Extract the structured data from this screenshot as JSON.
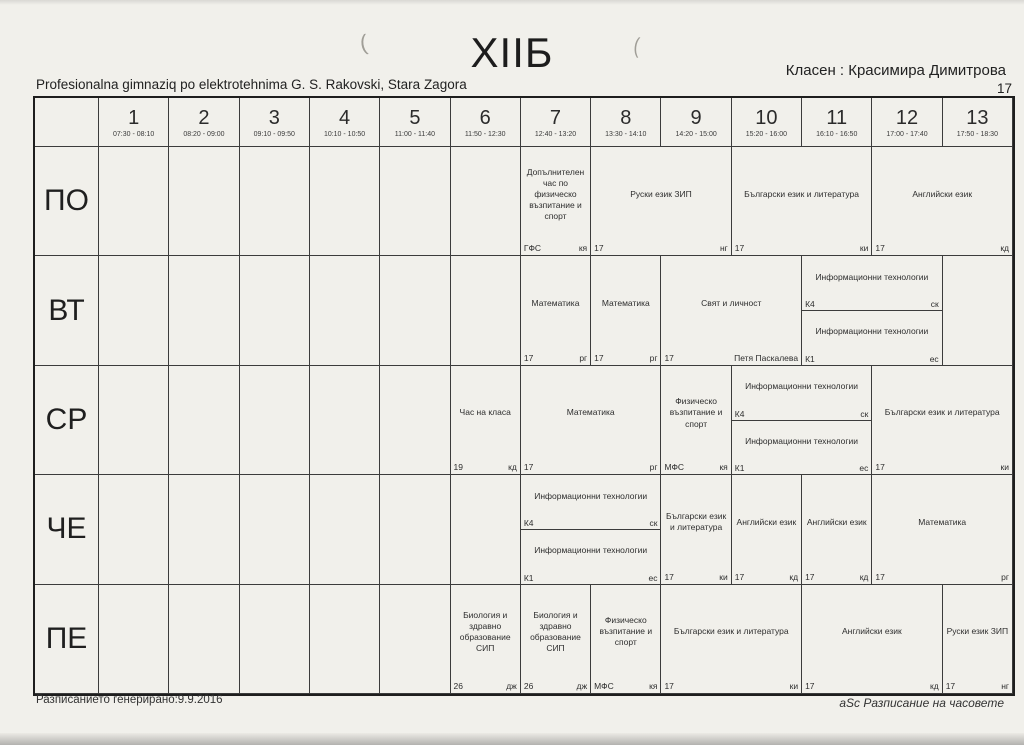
{
  "header": {
    "title": "ХIIБ",
    "class_teacher": "Класен : Красимира Димитрова",
    "school": "Profesionalna gimnaziq po elektrotehnima G. S. Rakovski, Stara Zagora",
    "page_number": "17"
  },
  "artifacts": [
    "(",
    "("
  ],
  "periods": [
    {
      "num": "1",
      "time": "07:30 - 08:10"
    },
    {
      "num": "2",
      "time": "08:20 - 09:00"
    },
    {
      "num": "3",
      "time": "09:10 - 09:50"
    },
    {
      "num": "4",
      "time": "10:10 - 10:50"
    },
    {
      "num": "5",
      "time": "11:00 - 11:40"
    },
    {
      "num": "6",
      "time": "11:50 - 12:30"
    },
    {
      "num": "7",
      "time": "12:40 - 13:20"
    },
    {
      "num": "8",
      "time": "13:30 - 14:10"
    },
    {
      "num": "9",
      "time": "14:20 - 15:00"
    },
    {
      "num": "10",
      "time": "15:20 - 16:00"
    },
    {
      "num": "11",
      "time": "16:10 - 16:50"
    },
    {
      "num": "12",
      "time": "17:00 - 17:40"
    },
    {
      "num": "13",
      "time": "17:50 - 18:30"
    }
  ],
  "days": [
    {
      "label": "ПО",
      "lessons": [
        {
          "col": 7,
          "span": 1,
          "subject": "Допълнителен час по  физическо възпитание и спорт",
          "room": "ГФС",
          "teacher": "кя"
        },
        {
          "col": 8,
          "span": 2,
          "subject": "Руски език ЗИП",
          "room": "17",
          "teacher": "нг"
        },
        {
          "col": 10,
          "span": 2,
          "subject": "Български език и литература",
          "room": "17",
          "teacher": "ки"
        },
        {
          "col": 12,
          "span": 2,
          "subject": "Английски език",
          "room": "17",
          "teacher": "кд"
        }
      ]
    },
    {
      "label": "ВТ",
      "lessons": [
        {
          "col": 7,
          "span": 1,
          "subject": "Математика",
          "room": "17",
          "teacher": "рг"
        },
        {
          "col": 8,
          "span": 1,
          "subject": "Математика",
          "room": "17",
          "teacher": "рг"
        },
        {
          "col": 9,
          "span": 2,
          "subject": "Свят и личност",
          "room": "17",
          "teacher": "Петя Паскалева"
        },
        {
          "col": 11,
          "span": 2,
          "groups": [
            {
              "subject": "Информационни технологии",
              "room": "К4",
              "teacher": "ск"
            },
            {
              "subject": "Информационни технологии",
              "room": "К1",
              "teacher": "ес"
            }
          ]
        }
      ]
    },
    {
      "label": "СР",
      "lessons": [
        {
          "col": 6,
          "span": 1,
          "subject": "Час на класа",
          "room": "19",
          "teacher": "кд"
        },
        {
          "col": 7,
          "span": 2,
          "subject": "Математика",
          "room": "17",
          "teacher": "рг"
        },
        {
          "col": 9,
          "span": 1,
          "subject": "Физическо възпитание и спорт",
          "room": "МФС",
          "teacher": "кя"
        },
        {
          "col": 10,
          "span": 2,
          "groups": [
            {
              "subject": "Информационни технологии",
              "room": "К4",
              "teacher": "ск"
            },
            {
              "subject": "Информационни технологии",
              "room": "К1",
              "teacher": "ес"
            }
          ]
        },
        {
          "col": 12,
          "span": 2,
          "subject": "Български език и литература",
          "room": "17",
          "teacher": "ки"
        }
      ]
    },
    {
      "label": "ЧЕ",
      "lessons": [
        {
          "col": 7,
          "span": 2,
          "groups": [
            {
              "subject": "Информационни технологии",
              "room": "К4",
              "teacher": "ск"
            },
            {
              "subject": "Информационни технологии",
              "room": "К1",
              "teacher": "ес"
            }
          ]
        },
        {
          "col": 9,
          "span": 1,
          "subject": "Български език и литература",
          "room": "17",
          "teacher": "ки"
        },
        {
          "col": 10,
          "span": 1,
          "subject": "Английски език",
          "room": "17",
          "teacher": "кд"
        },
        {
          "col": 11,
          "span": 1,
          "subject": "Английски език",
          "room": "17",
          "teacher": "кд"
        },
        {
          "col": 12,
          "span": 2,
          "subject": "Математика",
          "room": "17",
          "teacher": "рг"
        }
      ]
    },
    {
      "label": "ПЕ",
      "lessons": [
        {
          "col": 6,
          "span": 1,
          "subject": "Биология и здравно образование СИП",
          "room": "26",
          "teacher": "дж"
        },
        {
          "col": 7,
          "span": 1,
          "subject": "Биология и здравно образование СИП",
          "room": "26",
          "teacher": "дж"
        },
        {
          "col": 8,
          "span": 1,
          "subject": "Физическо възпитание и спорт",
          "room": "МФС",
          "teacher": "кя"
        },
        {
          "col": 9,
          "span": 2,
          "subject": "Български език и литература",
          "room": "17",
          "teacher": "ки"
        },
        {
          "col": 11,
          "span": 2,
          "subject": "Английски език",
          "room": "17",
          "teacher": "кд"
        },
        {
          "col": 13,
          "span": 1,
          "subject": "Руски език ЗИП",
          "room": "17",
          "teacher": "нг"
        }
      ]
    }
  ],
  "footer": {
    "generated": "Разписанието генерирано:9.9.2016",
    "brand": "aSc Разписание на часовете"
  }
}
